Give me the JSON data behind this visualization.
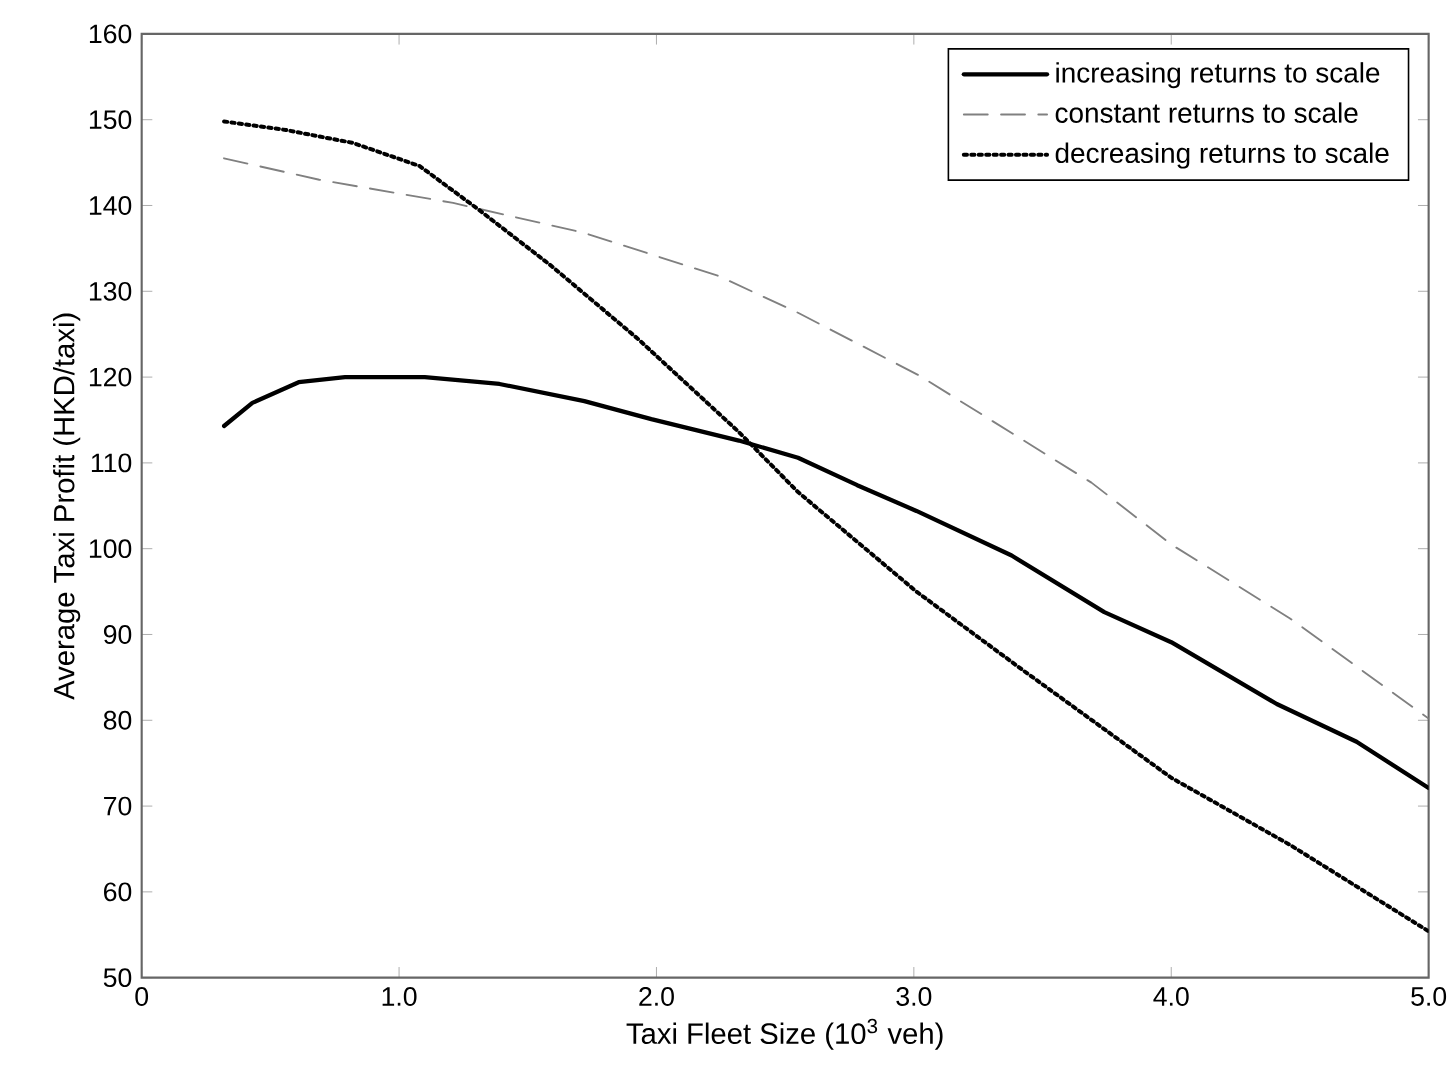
{
  "chart_data": {
    "type": "line",
    "xlabel": "Taxi Fleet Size (10$^{3}$ veh)",
    "ylabel": "Average Taxi Profit (HKD/taxi)",
    "xlim": [
      0,
      5
    ],
    "ylim": [
      50,
      160
    ],
    "xticks": [
      0,
      {
        "value": 1,
        "label": "1.0"
      },
      {
        "value": 2,
        "label": "2.0"
      },
      {
        "value": 3,
        "label": "3.0"
      },
      {
        "value": 4,
        "label": "4.0"
      },
      {
        "value": 5,
        "label": "5.0"
      }
    ],
    "yticks": [
      50,
      60,
      70,
      80,
      90,
      100,
      110,
      120,
      130,
      140,
      150,
      160
    ],
    "legend": "top right",
    "grid": false,
    "series": [
      {
        "name": "increasing returns to scale",
        "color": "#000000",
        "line_style": "solid",
        "x": [
          0.32,
          0.43,
          0.61,
          0.79,
          1.1,
          1.39,
          1.72,
          1.98,
          2.32,
          2.55,
          2.78,
          3.01,
          3.38,
          3.74,
          4.0,
          4.41,
          4.72,
          5.0
        ],
        "values": [
          114.3,
          117.0,
          119.4,
          120,
          120,
          119.2,
          117.2,
          115.1,
          112.6,
          110.6,
          107.4,
          104.4,
          99.2,
          92.6,
          89.1,
          81.9,
          77.5,
          72.1
        ]
      },
      {
        "name": "constant returns to scale",
        "color": "#808080",
        "line_style": "dashed",
        "x": [
          0.32,
          0.69,
          1.21,
          1.72,
          2.24,
          2.55,
          3.02,
          3.69,
          4.0,
          4.46,
          5.0
        ],
        "values": [
          145.5,
          143,
          140.3,
          136.8,
          131.8,
          127.5,
          120.2,
          107.7,
          100.5,
          91.9,
          80.2
        ]
      },
      {
        "name": "decreasing returns to scale",
        "color": "#000000",
        "line_style": "dotted",
        "x": [
          0.32,
          0.56,
          0.82,
          1.08,
          1.31,
          1.59,
          1.93,
          2.32,
          2.55,
          3.01,
          3.43,
          4.0,
          4.46,
          5.0
        ],
        "values": [
          149.8,
          148.8,
          147.3,
          144.6,
          139.5,
          133,
          124.4,
          113.6,
          106.6,
          95,
          85.7,
          73.3,
          65.5,
          55.4
        ]
      }
    ]
  }
}
